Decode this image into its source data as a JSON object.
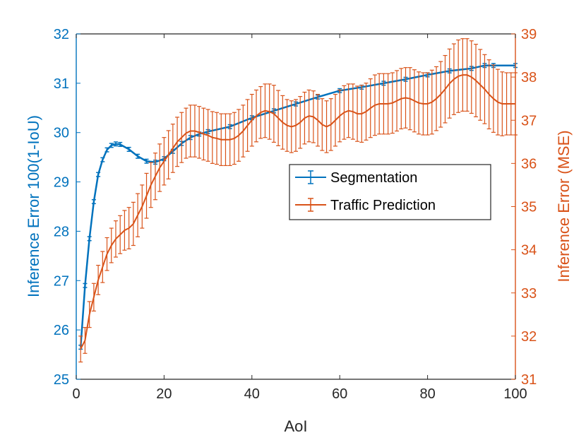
{
  "chart_data": {
    "type": "line",
    "title": "",
    "xlabel": "AoI",
    "xlim": [
      0,
      100
    ],
    "xticks": [
      0,
      20,
      40,
      60,
      80,
      100
    ],
    "y_left": {
      "label": "Inference Error 100(1-IoU)",
      "lim": [
        25,
        32
      ],
      "ticks": [
        25,
        26,
        27,
        28,
        29,
        30,
        31,
        32
      ],
      "color": "#0072BD"
    },
    "y_right": {
      "label": "Inference Error (MSE)",
      "lim": [
        31,
        39
      ],
      "ticks": [
        31,
        32,
        33,
        34,
        35,
        36,
        37,
        38,
        39
      ],
      "color": "#D95319"
    },
    "legend": {
      "position": "center-right",
      "entries": [
        "Segmentation",
        "Traffic Prediction"
      ]
    },
    "series": [
      {
        "name": "Segmentation",
        "axis": "left",
        "color": "#0072BD",
        "errorbar_halfwidth": 0.04,
        "x": [
          1,
          2,
          3,
          4,
          5,
          6,
          7,
          8,
          9,
          10,
          12,
          14,
          16,
          18,
          20,
          22,
          24,
          26,
          28,
          30,
          35,
          40,
          45,
          50,
          55,
          60,
          65,
          70,
          75,
          80,
          85,
          90,
          93,
          95,
          100
        ],
        "y": [
          25.65,
          26.9,
          27.85,
          28.6,
          29.15,
          29.45,
          29.65,
          29.74,
          29.77,
          29.76,
          29.66,
          29.52,
          29.42,
          29.4,
          29.47,
          29.62,
          29.78,
          29.9,
          29.97,
          30.02,
          30.12,
          30.3,
          30.44,
          30.58,
          30.72,
          30.85,
          30.92,
          31.0,
          31.08,
          31.17,
          31.25,
          31.3,
          31.36,
          31.36,
          31.36
        ]
      },
      {
        "name": "Traffic Prediction",
        "axis": "right",
        "color": "#D95319",
        "x": [
          1,
          2,
          3,
          4,
          5,
          6,
          7,
          8,
          9,
          10,
          11,
          12,
          13,
          14,
          15,
          16,
          17,
          18,
          19,
          20,
          21,
          22,
          23,
          24,
          25,
          26,
          27,
          28,
          29,
          30,
          31,
          32,
          33,
          34,
          35,
          36,
          37,
          38,
          39,
          40,
          41,
          42,
          43,
          44,
          45,
          46,
          47,
          48,
          49,
          50,
          51,
          52,
          53,
          54,
          55,
          56,
          57,
          58,
          59,
          60,
          61,
          62,
          63,
          64,
          65,
          66,
          67,
          68,
          69,
          70,
          71,
          72,
          73,
          74,
          75,
          76,
          77,
          78,
          79,
          80,
          81,
          82,
          83,
          84,
          85,
          86,
          87,
          88,
          89,
          90,
          91,
          92,
          93,
          94,
          95,
          96,
          97,
          98,
          99,
          100
        ],
        "y": [
          31.7,
          31.9,
          32.5,
          32.9,
          33.3,
          33.6,
          33.9,
          34.1,
          34.25,
          34.35,
          34.45,
          34.5,
          34.6,
          34.8,
          35.0,
          35.25,
          35.5,
          35.7,
          35.9,
          36.05,
          36.2,
          36.35,
          36.5,
          36.6,
          36.7,
          36.75,
          36.75,
          36.72,
          36.68,
          36.65,
          36.6,
          36.58,
          36.55,
          36.55,
          36.55,
          36.58,
          36.65,
          36.75,
          36.88,
          37.0,
          37.1,
          37.18,
          37.22,
          37.2,
          37.15,
          37.05,
          36.95,
          36.88,
          36.85,
          36.88,
          36.95,
          37.05,
          37.1,
          37.08,
          37.0,
          36.9,
          36.85,
          36.9,
          37.0,
          37.1,
          37.18,
          37.22,
          37.2,
          37.15,
          37.15,
          37.2,
          37.28,
          37.35,
          37.38,
          37.38,
          37.38,
          37.4,
          37.45,
          37.5,
          37.52,
          37.5,
          37.45,
          37.4,
          37.38,
          37.38,
          37.42,
          37.5,
          37.6,
          37.72,
          37.85,
          37.95,
          38.02,
          38.05,
          38.05,
          38.0,
          37.92,
          37.82,
          37.72,
          37.6,
          37.5,
          37.42,
          37.38,
          37.38,
          37.38,
          37.38
        ],
        "err": [
          0.3,
          0.3,
          0.3,
          0.32,
          0.34,
          0.36,
          0.38,
          0.4,
          0.42,
          0.44,
          0.46,
          0.48,
          0.5,
          0.5,
          0.5,
          0.52,
          0.52,
          0.54,
          0.55,
          0.55,
          0.56,
          0.56,
          0.57,
          0.58,
          0.58,
          0.6,
          0.6,
          0.6,
          0.6,
          0.6,
          0.6,
          0.6,
          0.6,
          0.6,
          0.6,
          0.6,
          0.6,
          0.6,
          0.6,
          0.6,
          0.6,
          0.6,
          0.62,
          0.64,
          0.66,
          0.64,
          0.62,
          0.6,
          0.6,
          0.6,
          0.6,
          0.6,
          0.6,
          0.6,
          0.6,
          0.6,
          0.6,
          0.6,
          0.6,
          0.6,
          0.62,
          0.62,
          0.64,
          0.64,
          0.66,
          0.66,
          0.68,
          0.7,
          0.7,
          0.7,
          0.7,
          0.7,
          0.7,
          0.7,
          0.7,
          0.72,
          0.72,
          0.72,
          0.72,
          0.72,
          0.74,
          0.74,
          0.76,
          0.78,
          0.8,
          0.82,
          0.84,
          0.84,
          0.84,
          0.84,
          0.84,
          0.82,
          0.8,
          0.8,
          0.78,
          0.76,
          0.74,
          0.72,
          0.72,
          0.72
        ]
      }
    ]
  }
}
